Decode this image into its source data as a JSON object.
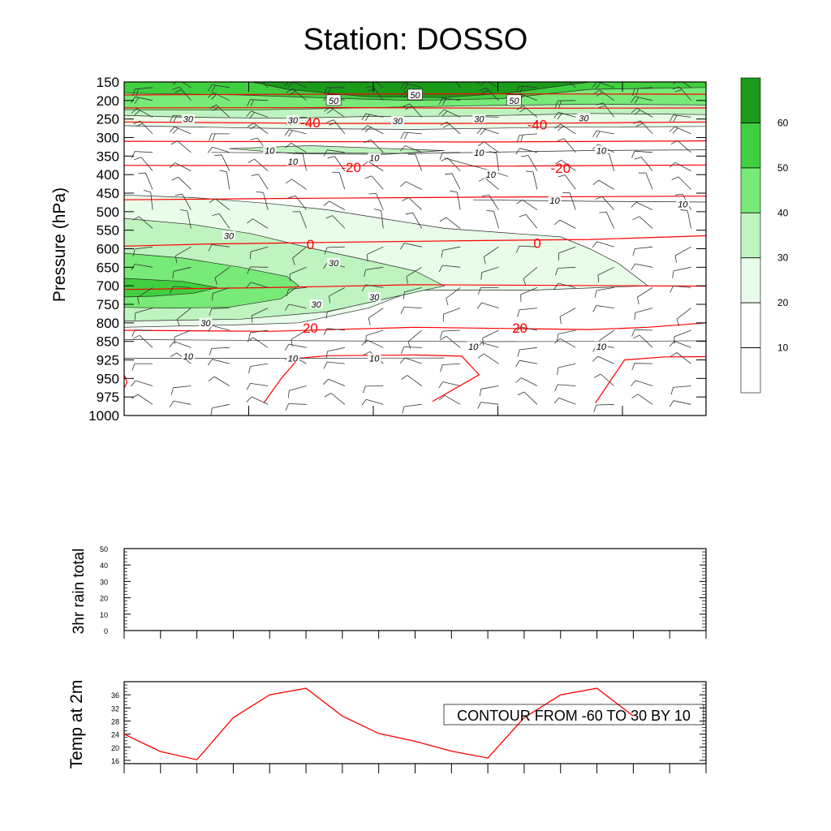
{
  "title": "Station: DOSSO",
  "colors": {
    "temp_contour": "#ff0000",
    "speed_fill": [
      "#ffffff",
      "#ffffff",
      "#e9fbe9",
      "#bff3bf",
      "#77ea77",
      "#3fcf3f",
      "#1a9b1a"
    ]
  },
  "chart_data": [
    {
      "id": "cross-section",
      "type": "heatmap",
      "ylabel": "Pressure (hPa)",
      "y_ticks": [
        150,
        200,
        250,
        300,
        350,
        400,
        450,
        500,
        550,
        600,
        650,
        700,
        750,
        800,
        850,
        925,
        950,
        975,
        1000
      ],
      "x_ticks": 8,
      "fill_variable": "wind speed",
      "colorbar": {
        "levels": [
          10,
          20,
          30,
          40,
          50,
          60
        ],
        "labels": [
          "10",
          "20",
          "30",
          "40",
          "50",
          "60"
        ]
      },
      "speed_labels": [
        {
          "text": "50",
          "x": 0.36,
          "p": 200
        },
        {
          "text": "50",
          "x": 0.5,
          "p": 185
        },
        {
          "text": "50",
          "x": 0.67,
          "p": 200
        },
        {
          "text": "30",
          "x": 0.11,
          "p": 250
        },
        {
          "text": "30",
          "x": 0.29,
          "p": 253
        },
        {
          "text": "30",
          "x": 0.47,
          "p": 255
        },
        {
          "text": "30",
          "x": 0.61,
          "p": 250
        },
        {
          "text": "30",
          "x": 0.79,
          "p": 247
        },
        {
          "text": "10",
          "x": 0.25,
          "p": 335
        },
        {
          "text": "10",
          "x": 0.29,
          "p": 365
        },
        {
          "text": "10",
          "x": 0.43,
          "p": 355
        },
        {
          "text": "10",
          "x": 0.61,
          "p": 340
        },
        {
          "text": "10",
          "x": 0.63,
          "p": 400
        },
        {
          "text": "10",
          "x": 0.82,
          "p": 335
        },
        {
          "text": "10",
          "x": 0.74,
          "p": 470
        },
        {
          "text": "10",
          "x": 0.96,
          "p": 480
        },
        {
          "text": "30",
          "x": 0.18,
          "p": 565
        },
        {
          "text": "30",
          "x": 0.36,
          "p": 638
        },
        {
          "text": "30",
          "x": 0.43,
          "p": 730
        },
        {
          "text": "30",
          "x": 0.33,
          "p": 750
        },
        {
          "text": "30",
          "x": 0.14,
          "p": 800
        },
        {
          "text": "10",
          "x": 0.11,
          "p": 910
        },
        {
          "text": "10",
          "x": 0.29,
          "p": 918
        },
        {
          "text": "10",
          "x": 0.43,
          "p": 918
        },
        {
          "text": "10",
          "x": 0.6,
          "p": 870
        },
        {
          "text": "10",
          "x": 0.82,
          "p": 870
        }
      ],
      "temp_labels": [
        {
          "text": "-40",
          "x": 0.32,
          "p": 260
        },
        {
          "text": "-40",
          "x": 0.71,
          "p": 265
        },
        {
          "text": "-20",
          "x": 0.39,
          "p": 380
        },
        {
          "text": "-20",
          "x": 0.75,
          "p": 382
        },
        {
          "text": "0",
          "x": 0.32,
          "p": 588
        },
        {
          "text": "0",
          "x": 0.71,
          "p": 585
        },
        {
          "text": "20",
          "x": 0.32,
          "p": 813
        },
        {
          "text": "20",
          "x": 0.68,
          "p": 813
        }
      ]
    },
    {
      "id": "rain-chart",
      "type": "line",
      "ylabel": "3hr rain total",
      "ylim": [
        0,
        50
      ],
      "yticks": [
        0,
        10,
        20,
        30,
        40,
        50
      ],
      "series": [
        {
          "name": "3hr rain total",
          "values": []
        }
      ]
    },
    {
      "id": "temp-chart",
      "type": "line",
      "ylabel": "Temp at 2m",
      "ylim": [
        15,
        40
      ],
      "yticks": [
        16,
        20,
        24,
        28,
        32,
        36
      ],
      "x": [
        0,
        1,
        2,
        3,
        4,
        5,
        6,
        7,
        8,
        9,
        10,
        11,
        12,
        13,
        14
      ],
      "series": [
        {
          "name": "Temp at 2m",
          "values": [
            24.0,
            18.7,
            16.2,
            29.0,
            36.0,
            38.0,
            29.5,
            24.2,
            21.8,
            18.8,
            16.7,
            29.0,
            36.0,
            38.0,
            29.5
          ]
        }
      ],
      "annotation": "CONTOUR FROM -60 TO 30 BY 10"
    }
  ]
}
